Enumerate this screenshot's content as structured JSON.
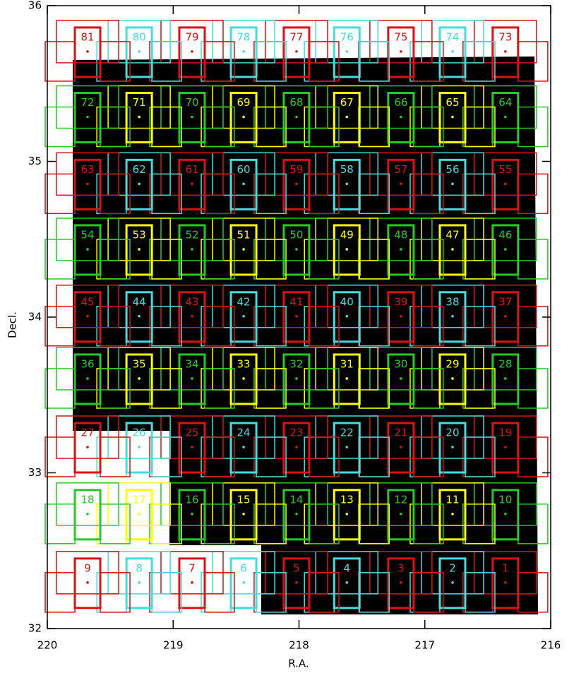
{
  "chart_data": {
    "type": "scatter",
    "x_label": "R.A.",
    "y_label": "Decl.",
    "xlim": [
      220,
      216
    ],
    "ylim": [
      32,
      36
    ],
    "xticks": [
      220,
      219,
      218,
      217,
      216
    ],
    "yticks": [
      32,
      33,
      34,
      35,
      36
    ],
    "point_labels": [
      "1",
      "2",
      "3",
      "4",
      "5",
      "6",
      "7",
      "8",
      "9",
      "10",
      "11",
      "12",
      "13",
      "14",
      "15",
      "16",
      "17",
      "18",
      "19",
      "20",
      "21",
      "22",
      "23",
      "24",
      "25",
      "26",
      "27",
      "28",
      "29",
      "30",
      "31",
      "32",
      "33",
      "34",
      "35",
      "36",
      "37",
      "38",
      "39",
      "40",
      "41",
      "42",
      "43",
      "44",
      "45",
      "46",
      "47",
      "48",
      "49",
      "50",
      "51",
      "52",
      "53",
      "54",
      "55",
      "56",
      "57",
      "58",
      "59",
      "60",
      "61",
      "62",
      "63",
      "64",
      "65",
      "66",
      "67",
      "68",
      "69",
      "70",
      "71",
      "72",
      "73",
      "74",
      "75",
      "76",
      "77",
      "78",
      "79",
      "80",
      "81"
    ],
    "x": [
      216.36,
      216.78,
      217.19,
      217.62,
      218.02,
      218.44,
      218.85,
      219.27,
      219.68,
      216.36,
      216.78,
      217.19,
      217.62,
      218.02,
      218.44,
      218.85,
      219.27,
      219.68,
      216.36,
      216.78,
      217.19,
      217.62,
      218.02,
      218.44,
      218.85,
      219.27,
      219.68,
      216.36,
      216.78,
      217.19,
      217.62,
      218.02,
      218.44,
      218.85,
      219.27,
      219.68,
      216.36,
      216.78,
      217.19,
      217.62,
      218.02,
      218.44,
      218.85,
      219.27,
      219.68,
      216.36,
      216.78,
      217.19,
      217.62,
      218.02,
      218.44,
      218.85,
      219.27,
      219.68,
      216.36,
      216.78,
      217.19,
      217.62,
      218.02,
      218.44,
      218.85,
      219.27,
      219.68,
      216.36,
      216.78,
      217.19,
      217.62,
      218.02,
      218.44,
      218.85,
      219.27,
      219.68,
      216.36,
      216.78,
      217.19,
      217.62,
      218.02,
      218.44,
      218.85,
      219.27,
      219.68
    ],
    "values": [
      32.35,
      32.35,
      32.35,
      32.35,
      32.35,
      32.35,
      32.35,
      32.35,
      32.35,
      32.79,
      32.79,
      32.79,
      32.79,
      32.79,
      32.79,
      32.79,
      32.79,
      32.79,
      33.22,
      33.22,
      33.22,
      33.22,
      33.22,
      33.22,
      33.22,
      33.22,
      33.22,
      33.66,
      33.66,
      33.66,
      33.66,
      33.66,
      33.66,
      33.66,
      33.66,
      33.66,
      34.06,
      34.06,
      34.06,
      34.06,
      34.06,
      34.06,
      34.06,
      34.06,
      34.06,
      34.49,
      34.49,
      34.49,
      34.49,
      34.49,
      34.49,
      34.49,
      34.49,
      34.49,
      34.91,
      34.91,
      34.91,
      34.91,
      34.91,
      34.91,
      34.91,
      34.91,
      34.91,
      35.34,
      35.34,
      35.34,
      35.34,
      35.34,
      35.34,
      35.34,
      35.34,
      35.34,
      35.76,
      35.76,
      35.76,
      35.76,
      35.76,
      35.76,
      35.76,
      35.76,
      35.76
    ],
    "point_colors": [
      "#dd1111",
      "#44dddd",
      "#dd1111",
      "#44dddd",
      "#dd1111",
      "#44dddd",
      "#dd1111",
      "#44dddd",
      "#dd1111",
      "#22cc22",
      "#ffff00",
      "#22cc22",
      "#ffff00",
      "#22cc22",
      "#ffff00",
      "#22cc22",
      "#ffff00",
      "#22cc22",
      "#dd1111",
      "#44dddd",
      "#dd1111",
      "#44dddd",
      "#dd1111",
      "#44dddd",
      "#dd1111",
      "#44dddd",
      "#dd1111",
      "#22cc22",
      "#ffff00",
      "#22cc22",
      "#ffff00",
      "#22cc22",
      "#ffff00",
      "#22cc22",
      "#ffff00",
      "#22cc22",
      "#dd1111",
      "#44dddd",
      "#dd1111",
      "#44dddd",
      "#dd1111",
      "#44dddd",
      "#dd1111",
      "#44dddd",
      "#dd1111",
      "#22cc22",
      "#ffff00",
      "#22cc22",
      "#ffff00",
      "#22cc22",
      "#ffff00",
      "#22cc22",
      "#ffff00",
      "#22cc22",
      "#dd1111",
      "#44dddd",
      "#dd1111",
      "#44dddd",
      "#dd1111",
      "#44dddd",
      "#dd1111",
      "#44dddd",
      "#dd1111",
      "#22cc22",
      "#ffff00",
      "#22cc22",
      "#ffff00",
      "#22cc22",
      "#ffff00",
      "#22cc22",
      "#ffff00",
      "#22cc22",
      "#dd1111",
      "#44dddd",
      "#dd1111",
      "#44dddd",
      "#dd1111",
      "#44dddd",
      "#dd1111",
      "#44dddd",
      "#dd1111"
    ]
  }
}
